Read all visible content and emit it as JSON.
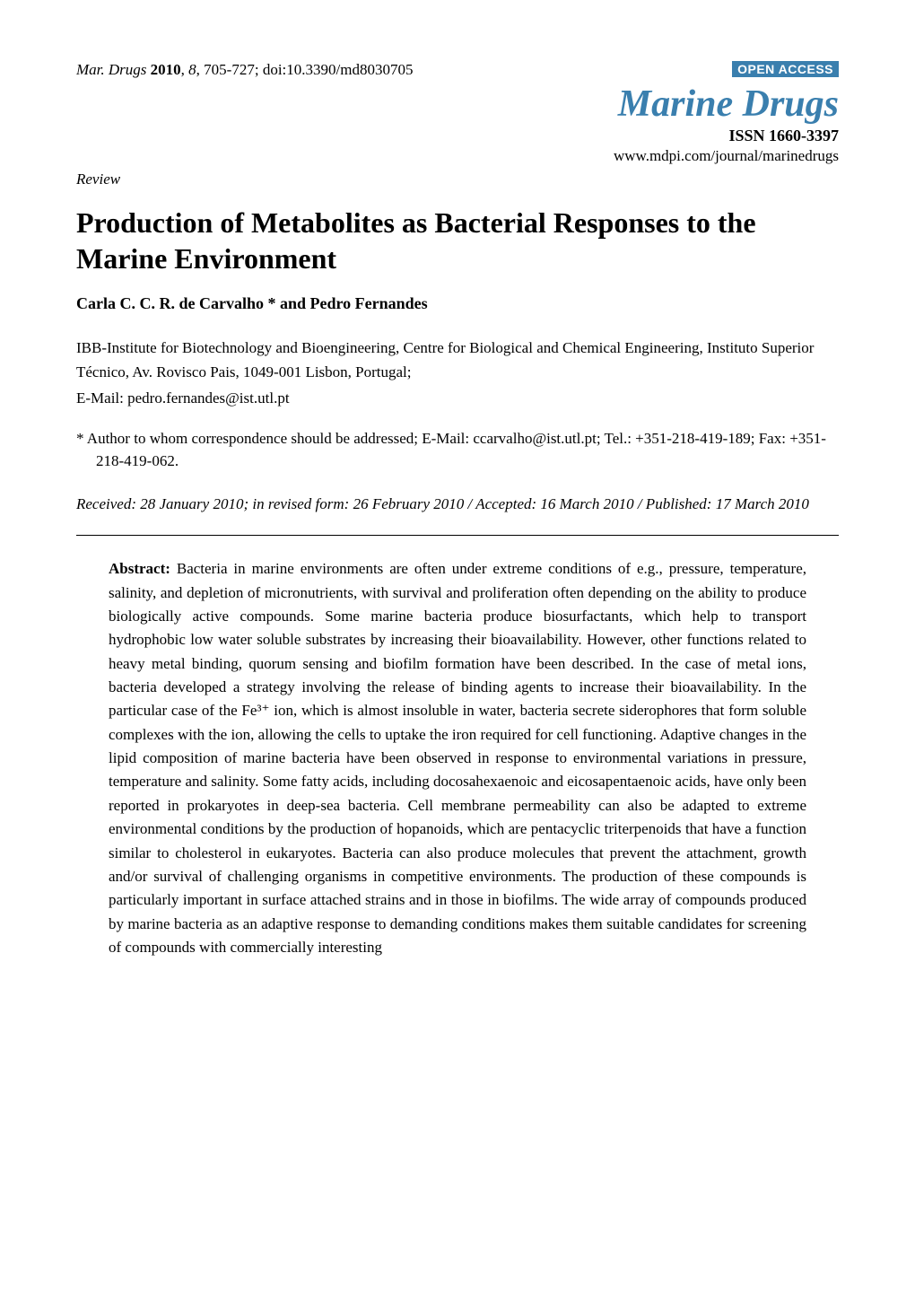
{
  "header": {
    "journal_abbrev": "Mar. Drugs",
    "year": "2010",
    "volume": "8",
    "pages": "705-727",
    "doi": "doi:10.3390/md8030705",
    "open_access_label": "OPEN ACCESS",
    "journal_title": "Marine Drugs",
    "issn_label": "ISSN 1660-3397",
    "journal_url": "www.mdpi.com/journal/marinedrugs"
  },
  "article": {
    "type_label": "Review",
    "title": "Production of Metabolites as Bacterial Responses to the Marine Environment",
    "authors": "Carla C. C. R. de Carvalho * and Pedro Fernandes",
    "affiliation": "IBB-Institute for Biotechnology and Bioengineering, Centre for Biological and Chemical Engineering, Instituto Superior Técnico, Av. Rovisco Pais, 1049-001 Lisbon, Portugal;",
    "email_line": "E-Mail: pedro.fernandes@ist.utl.pt",
    "correspondence": "*   Author to whom correspondence should be addressed; E-Mail: ccarvalho@ist.utl.pt; Tel.: +351-218-419-189; Fax: +351-218-419-062.",
    "dates": "Received: 28 January 2010; in revised form: 26 February 2010 / Accepted: 16 March 2010 / Published: 17 March 2010"
  },
  "abstract": {
    "label": "Abstract:",
    "text": " Bacteria in marine environments are often under extreme conditions of e.g., pressure, temperature, salinity, and depletion of micronutrients, with survival and proliferation often depending on the ability to produce biologically active compounds. Some marine bacteria produce biosurfactants, which help to transport hydrophobic low water soluble substrates by increasing their bioavailability. However, other functions related to heavy metal binding, quorum sensing and biofilm formation have been described. In the case of metal ions, bacteria developed a strategy involving the release of binding agents to increase their bioavailability. In the particular case of the Fe³⁺ ion, which is almost insoluble in water, bacteria secrete siderophores that form soluble complexes with the ion, allowing the cells to uptake the iron required for cell functioning. Adaptive changes in the lipid composition of marine bacteria have been observed in response to environmental variations in pressure, temperature and salinity. Some fatty acids, including docosahexaenoic and eicosapentaenoic acids, have only been reported in prokaryotes in deep-sea bacteria. Cell membrane permeability can also be adapted to extreme environmental conditions by the production of hopanoids, which are pentacyclic triterpenoids that have a function similar to cholesterol in eukaryotes. Bacteria can also produce molecules that prevent the attachment, growth and/or survival of challenging organisms in competitive environments. The production of these compounds is particularly important in surface attached strains and in those in biofilms. The wide array of compounds produced by marine bacteria as an adaptive response to demanding conditions makes them suitable candidates for screening of compounds with commercially interesting"
  },
  "colors": {
    "accent": "#3a7fae",
    "text": "#000000",
    "background": "#ffffff"
  },
  "typography": {
    "body_font": "Times New Roman",
    "title_fontsize_pt": 24,
    "journal_title_fontsize_pt": 31,
    "body_fontsize_pt": 12.5
  }
}
